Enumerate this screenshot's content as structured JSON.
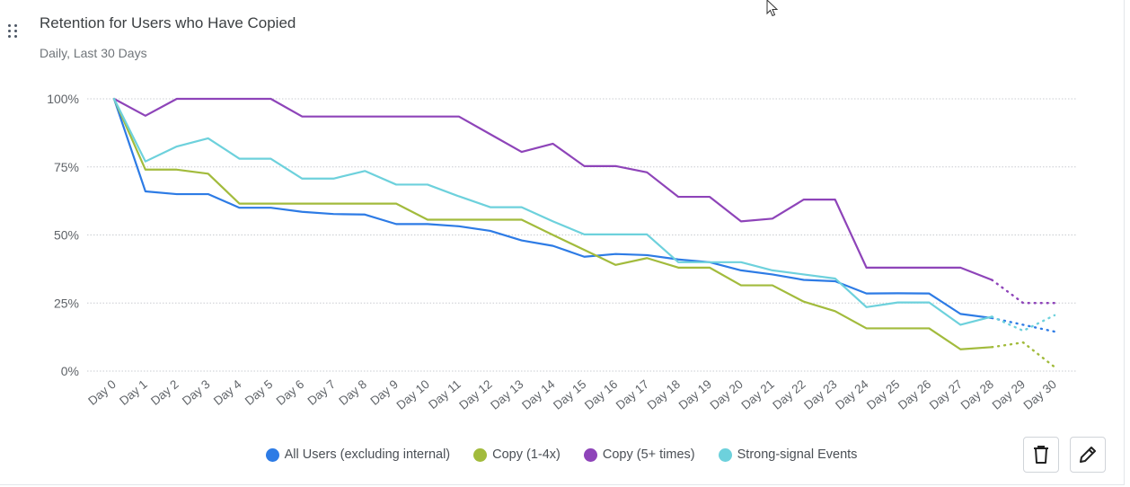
{
  "card": {
    "title": "Retention for Users who Have Copied",
    "subtitle": "Daily, Last 30 Days"
  },
  "icons": {
    "drag": "drag-handle-icon",
    "cursor": "mouse-pointer-icon",
    "delete": "trash-icon",
    "edit": "pencil-icon"
  },
  "chart_data": {
    "type": "line",
    "title": "Retention for Users who Have Copied",
    "subtitle": "Daily, Last 30 Days",
    "xlabel": "",
    "ylabel": "",
    "ylim": [
      0,
      100
    ],
    "yticks": [
      0,
      25,
      50,
      75,
      100
    ],
    "ytick_labels": [
      "0%",
      "25%",
      "50%",
      "75%",
      "100%"
    ],
    "grid": "horizontal dotted",
    "legend_position": "bottom-center",
    "categories": [
      "Day 0",
      "Day 1",
      "Day 2",
      "Day 3",
      "Day 4",
      "Day 5",
      "Day 6",
      "Day 7",
      "Day 8",
      "Day 9",
      "Day 10",
      "Day 11",
      "Day 12",
      "Day 13",
      "Day 14",
      "Day 15",
      "Day 16",
      "Day 17",
      "Day 18",
      "Day 19",
      "Day 20",
      "Day 21",
      "Day 22",
      "Day 23",
      "Day 24",
      "Day 25",
      "Day 26",
      "Day 27",
      "Day 28",
      "Day 29",
      "Day 30"
    ],
    "solid_through": "Day 28",
    "dotted_from": "Day 28",
    "series": [
      {
        "name": "All Users (excluding internal)",
        "color": "#2d7be5",
        "values": [
          100,
          66,
          65,
          65,
          60,
          60,
          58.5,
          57.7,
          57.5,
          54,
          54,
          53.2,
          51.5,
          48,
          46,
          42,
          43,
          42.6,
          41,
          40,
          37,
          35.5,
          33.5,
          33,
          28.5,
          28.6,
          28.5,
          21,
          19.5,
          17,
          14.5
        ]
      },
      {
        "name": "Copy (1-4x)",
        "color": "#a2bb3c",
        "values": [
          100,
          74,
          74,
          72.5,
          61.5,
          61.5,
          61.5,
          61.5,
          61.5,
          61.5,
          55.6,
          55.6,
          55.6,
          55.6,
          50,
          44.5,
          39,
          41.5,
          38,
          38,
          31.5,
          31.5,
          25.5,
          22,
          15.7,
          15.7,
          15.7,
          8,
          8.8,
          10.5,
          1.5
        ]
      },
      {
        "name": "Copy (5+ times)",
        "color": "#8e44b9",
        "values": [
          100,
          93.8,
          100,
          100,
          100,
          100,
          93.5,
          93.5,
          93.5,
          93.5,
          93.5,
          93.5,
          87,
          80.5,
          83.5,
          75.3,
          75.3,
          73,
          64,
          64,
          55,
          56,
          63,
          63,
          38,
          38,
          38,
          38,
          33.5,
          25,
          25
        ]
      },
      {
        "name": "Strong-signal Events",
        "color": "#6dd1dc",
        "values": [
          100,
          77,
          82.5,
          85.5,
          78,
          78,
          70.7,
          70.7,
          73.5,
          68.5,
          68.5,
          64.2,
          60.2,
          60.2,
          55,
          50.2,
          50.2,
          50.2,
          40,
          40,
          40,
          37,
          35.5,
          34,
          23.5,
          25.2,
          25.2,
          17,
          20,
          14.8,
          20.5
        ]
      }
    ]
  }
}
